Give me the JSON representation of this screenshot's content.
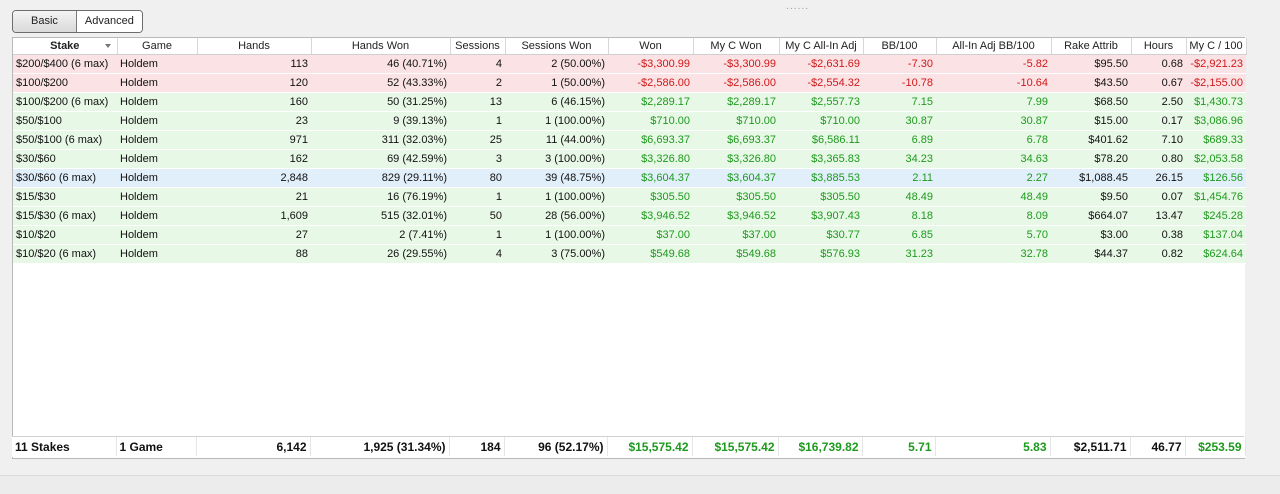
{
  "view_toggle": {
    "basic": "Basic",
    "advanced": "Advanced"
  },
  "grip": "......",
  "columns": [
    "Stake",
    "Game",
    "Hands",
    "Hands Won",
    "Sessions",
    "Sessions Won",
    "Won",
    "My C Won",
    "My C All-In Adj",
    "BB/100",
    "All-In Adj BB/100",
    "Rake Attrib",
    "Hours",
    "My C / 100"
  ],
  "rows": [
    {
      "stake": "$200/$400 (6 max)",
      "game": "Holdem",
      "hands": "113",
      "hands_won": "46 (40.71%)",
      "sessions": "4",
      "sessions_won": "2 (50.00%)",
      "won": "-$3,300.99",
      "my_c_won": "-$3,300.99",
      "my_c_allin_adj": "-$2,631.69",
      "bb100": "-7.30",
      "allin_adj_bb100": "-5.82",
      "rake": "$95.50",
      "hours": "0.68",
      "my_c_100": "-$2,921.23",
      "tone": "loss"
    },
    {
      "stake": "$100/$200",
      "game": "Holdem",
      "hands": "120",
      "hands_won": "52 (43.33%)",
      "sessions": "2",
      "sessions_won": "1 (50.00%)",
      "won": "-$2,586.00",
      "my_c_won": "-$2,586.00",
      "my_c_allin_adj": "-$2,554.32",
      "bb100": "-10.78",
      "allin_adj_bb100": "-10.64",
      "rake": "$43.50",
      "hours": "0.67",
      "my_c_100": "-$2,155.00",
      "tone": "loss"
    },
    {
      "stake": "$100/$200 (6 max)",
      "game": "Holdem",
      "hands": "160",
      "hands_won": "50 (31.25%)",
      "sessions": "13",
      "sessions_won": "6 (46.15%)",
      "won": "$2,289.17",
      "my_c_won": "$2,289.17",
      "my_c_allin_adj": "$2,557.73",
      "bb100": "7.15",
      "allin_adj_bb100": "7.99",
      "rake": "$68.50",
      "hours": "2.50",
      "my_c_100": "$1,430.73",
      "tone": "win"
    },
    {
      "stake": "$50/$100",
      "game": "Holdem",
      "hands": "23",
      "hands_won": "9 (39.13%)",
      "sessions": "1",
      "sessions_won": "1 (100.00%)",
      "won": "$710.00",
      "my_c_won": "$710.00",
      "my_c_allin_adj": "$710.00",
      "bb100": "30.87",
      "allin_adj_bb100": "30.87",
      "rake": "$15.00",
      "hours": "0.17",
      "my_c_100": "$3,086.96",
      "tone": "win"
    },
    {
      "stake": "$50/$100 (6 max)",
      "game": "Holdem",
      "hands": "971",
      "hands_won": "311 (32.03%)",
      "sessions": "25",
      "sessions_won": "11 (44.00%)",
      "won": "$6,693.37",
      "my_c_won": "$6,693.37",
      "my_c_allin_adj": "$6,586.11",
      "bb100": "6.89",
      "allin_adj_bb100": "6.78",
      "rake": "$401.62",
      "hours": "7.10",
      "my_c_100": "$689.33",
      "tone": "win"
    },
    {
      "stake": "$30/$60",
      "game": "Holdem",
      "hands": "162",
      "hands_won": "69 (42.59%)",
      "sessions": "3",
      "sessions_won": "3 (100.00%)",
      "won": "$3,326.80",
      "my_c_won": "$3,326.80",
      "my_c_allin_adj": "$3,365.83",
      "bb100": "34.23",
      "allin_adj_bb100": "34.63",
      "rake": "$78.20",
      "hours": "0.80",
      "my_c_100": "$2,053.58",
      "tone": "win"
    },
    {
      "stake": "$30/$60 (6 max)",
      "game": "Holdem",
      "hands": "2,848",
      "hands_won": "829 (29.11%)",
      "sessions": "80",
      "sessions_won": "39 (48.75%)",
      "won": "$3,604.37",
      "my_c_won": "$3,604.37",
      "my_c_allin_adj": "$3,885.53",
      "bb100": "2.11",
      "allin_adj_bb100": "2.27",
      "rake": "$1,088.45",
      "hours": "26.15",
      "my_c_100": "$126.56",
      "tone": "sel"
    },
    {
      "stake": "$15/$30",
      "game": "Holdem",
      "hands": "21",
      "hands_won": "16 (76.19%)",
      "sessions": "1",
      "sessions_won": "1 (100.00%)",
      "won": "$305.50",
      "my_c_won": "$305.50",
      "my_c_allin_adj": "$305.50",
      "bb100": "48.49",
      "allin_adj_bb100": "48.49",
      "rake": "$9.50",
      "hours": "0.07",
      "my_c_100": "$1,454.76",
      "tone": "win"
    },
    {
      "stake": "$15/$30 (6 max)",
      "game": "Holdem",
      "hands": "1,609",
      "hands_won": "515 (32.01%)",
      "sessions": "50",
      "sessions_won": "28 (56.00%)",
      "won": "$3,946.52",
      "my_c_won": "$3,946.52",
      "my_c_allin_adj": "$3,907.43",
      "bb100": "8.18",
      "allin_adj_bb100": "8.09",
      "rake": "$664.07",
      "hours": "13.47",
      "my_c_100": "$245.28",
      "tone": "win"
    },
    {
      "stake": "$10/$20",
      "game": "Holdem",
      "hands": "27",
      "hands_won": "2 (7.41%)",
      "sessions": "1",
      "sessions_won": "1 (100.00%)",
      "won": "$37.00",
      "my_c_won": "$37.00",
      "my_c_allin_adj": "$30.77",
      "bb100": "6.85",
      "allin_adj_bb100": "5.70",
      "rake": "$3.00",
      "hours": "0.38",
      "my_c_100": "$137.04",
      "tone": "win"
    },
    {
      "stake": "$10/$20 (6 max)",
      "game": "Holdem",
      "hands": "88",
      "hands_won": "26 (29.55%)",
      "sessions": "4",
      "sessions_won": "3 (75.00%)",
      "won": "$549.68",
      "my_c_won": "$549.68",
      "my_c_allin_adj": "$576.93",
      "bb100": "31.23",
      "allin_adj_bb100": "32.78",
      "rake": "$44.37",
      "hours": "0.82",
      "my_c_100": "$624.64",
      "tone": "win"
    }
  ],
  "totals": {
    "stake": "11 Stakes",
    "game": "1 Game",
    "hands": "6,142",
    "hands_won": "1,925 (31.34%)",
    "sessions": "184",
    "sessions_won": "96 (52.17%)",
    "won": "$15,575.42",
    "my_c_won": "$15,575.42",
    "my_c_allin_adj": "$16,739.82",
    "bb100": "5.71",
    "allin_adj_bb100": "5.83",
    "rake": "$2,511.71",
    "hours": "46.77",
    "my_c_100": "$253.59"
  },
  "colors": {
    "loss_row": "#fbe3e5",
    "win_row": "#e8f8e6",
    "selected_row": "#e1effb",
    "negative_text": "#d01818",
    "positive_text": "#1d9a1d"
  }
}
